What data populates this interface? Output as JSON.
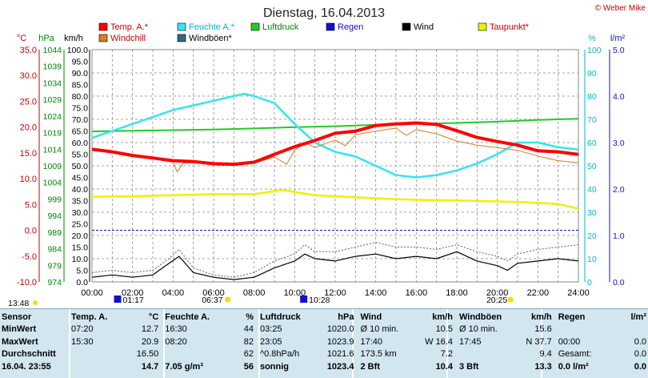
{
  "title": "Dienstag, 16.04.2013",
  "credit": "© Weber Mike",
  "colors": {
    "temp": "#ff0000",
    "humidity": "#33e6ee",
    "pressure": "#22cc22",
    "rain": "#1111cc",
    "wind": "#000000",
    "dewpoint": "#f0f000",
    "windchill": "#e07820",
    "gust": "#336688",
    "grid": "#888888"
  },
  "legend": [
    {
      "key": "temp",
      "label": "Temp. A.*"
    },
    {
      "key": "humidity",
      "label": "Feuchte A.*"
    },
    {
      "key": "pressure",
      "label": "Luftdruck"
    },
    {
      "key": "rain",
      "label": "Regen"
    },
    {
      "key": "wind",
      "label": "Wind"
    },
    {
      "key": "dewpoint",
      "label": "Taupunkt*"
    },
    {
      "key": "windchill",
      "label": "Windchill"
    },
    {
      "key": "gust",
      "label": "Windböen*"
    }
  ],
  "markers": {
    "sunrise": "06:37",
    "sunset": "20:25",
    "daylength": "13:48",
    "min_temp_time": "01:17",
    "max_gust_time": "10:28"
  },
  "chart_data": {
    "type": "line",
    "x_range": [
      "00:00",
      "24:00"
    ],
    "x_ticks": [
      "00:00",
      "02:00",
      "04:00",
      "06:00",
      "08:00",
      "10:00",
      "12:00",
      "14:00",
      "16:00",
      "18:00",
      "20:00",
      "22:00",
      "24:00"
    ],
    "axes": {
      "temp": {
        "unit": "°C",
        "range": [
          -10,
          35
        ],
        "ticks": [
          "35.0",
          "30.0",
          "25.0",
          "20.0",
          "15.0",
          "10.0",
          "5.0",
          "0.0",
          "-5.0",
          "-10.0"
        ]
      },
      "pressure": {
        "unit": "hPa",
        "range": [
          974,
          1045
        ],
        "ticks": [
          "1044",
          "1039",
          "1034",
          "1029",
          "1024",
          "1019",
          "1014",
          "1009",
          "1004",
          "999",
          "994",
          "989",
          "984",
          "979",
          "974"
        ]
      },
      "wind": {
        "unit": "km/h",
        "range": [
          0,
          100
        ],
        "ticks": [
          "100.0",
          "95.0",
          "90.0",
          "85.0",
          "80.0",
          "75.0",
          "70.0",
          "65.0",
          "60.0",
          "55.0",
          "50.0",
          "45.0",
          "40.0",
          "35.0",
          "30.0",
          "25.0",
          "20.0",
          "15.0",
          "10.0",
          "5.0",
          "0.0"
        ]
      },
      "humidity": {
        "unit": "%",
        "range": [
          0,
          100
        ],
        "ticks": [
          "100",
          "90",
          "80",
          "70",
          "60",
          "50",
          "40",
          "30",
          "20",
          "10",
          "0"
        ]
      },
      "rain": {
        "unit": "l/m²",
        "range": [
          0,
          5
        ],
        "ticks": [
          "5.0",
          "4.0",
          "3.0",
          "2.0",
          "1.0",
          "0.0"
        ]
      }
    },
    "series": [
      {
        "key": "temp",
        "name": "Temp. A.*",
        "axis": "temp",
        "x": [
          0,
          1,
          2,
          3,
          4,
          5,
          6,
          7,
          8,
          9,
          10,
          11,
          12,
          13,
          14,
          15,
          16,
          17,
          18,
          19,
          20,
          21,
          22,
          23,
          24
        ],
        "y": [
          15.7,
          15.2,
          14.5,
          14.0,
          13.5,
          13.3,
          12.9,
          12.8,
          13.2,
          14.7,
          16.2,
          17.4,
          18.8,
          19.2,
          20.3,
          20.6,
          20.8,
          20.5,
          19.3,
          18.0,
          17.2,
          16.5,
          15.4,
          15.2,
          14.7
        ]
      },
      {
        "key": "windchill",
        "name": "Windchill",
        "axis": "temp",
        "x": [
          0,
          1,
          2,
          3,
          4,
          4.2,
          4.5,
          5,
          6,
          7,
          8,
          9,
          9.6,
          10,
          10.5,
          11,
          12,
          12.5,
          13,
          14,
          15,
          15.5,
          16,
          17,
          18,
          19,
          20,
          21,
          22,
          23,
          24
        ],
        "y": [
          15.6,
          15.1,
          14.3,
          13.9,
          13.2,
          11.3,
          13.0,
          13.1,
          12.8,
          12.6,
          13.0,
          14.2,
          12.8,
          15.5,
          17.0,
          16.0,
          17.5,
          16.4,
          18.5,
          19.2,
          19.8,
          18.4,
          19.5,
          18.7,
          17.3,
          16.5,
          16.0,
          15.5,
          14.4,
          13.5,
          13.1
        ]
      },
      {
        "key": "dewpoint",
        "name": "Taupunkt*",
        "axis": "temp",
        "x": [
          0,
          2,
          4,
          6,
          8,
          9,
          9.5,
          10,
          11,
          12,
          14,
          16,
          18,
          20,
          21,
          22,
          23,
          24
        ],
        "y": [
          6.5,
          6.6,
          6.8,
          7.0,
          7.0,
          7.6,
          7.8,
          7.4,
          6.8,
          6.6,
          6.2,
          5.9,
          5.8,
          5.6,
          5.5,
          5.3,
          5.1,
          4.2
        ]
      },
      {
        "key": "humidity",
        "name": "Feuchte A.*",
        "axis": "humidity",
        "x": [
          0,
          1,
          2,
          3,
          4,
          5,
          6,
          7,
          7.5,
          8,
          9,
          10,
          11,
          12,
          13,
          14,
          15,
          16,
          17,
          18,
          19,
          20,
          21,
          22,
          23,
          24
        ],
        "y": [
          62,
          65,
          68,
          71,
          74,
          76,
          78,
          80,
          81,
          80,
          77,
          68,
          60,
          56,
          54,
          50,
          46,
          45,
          46,
          48,
          51,
          55,
          60,
          60,
          58,
          57
        ]
      },
      {
        "key": "pressure",
        "name": "Luftdruck",
        "axis": "pressure",
        "x": [
          0,
          2,
          4,
          6,
          8,
          10,
          12,
          14,
          16,
          18,
          20,
          22,
          24
        ],
        "y": [
          1020.0,
          1020.2,
          1020.4,
          1020.6,
          1020.9,
          1021.3,
          1021.6,
          1022.0,
          1022.3,
          1022.6,
          1023.0,
          1023.5,
          1023.9
        ]
      },
      {
        "key": "wind",
        "name": "Wind",
        "axis": "wind",
        "x": [
          0,
          1,
          2,
          3,
          3.8,
          4.3,
          5,
          6,
          7,
          8,
          9,
          10,
          10.5,
          11,
          12,
          13,
          14,
          15,
          16,
          17,
          18,
          19,
          20,
          20.5,
          21,
          22,
          23,
          24
        ],
        "y": [
          2,
          3,
          2,
          3,
          8,
          11,
          4,
          2,
          1,
          2,
          6,
          9,
          12,
          10,
          9,
          11,
          12,
          10,
          11,
          10,
          13,
          9,
          7,
          5,
          8,
          9,
          10,
          9
        ]
      },
      {
        "key": "gust",
        "name": "Windböen*",
        "axis": "wind",
        "x": [
          0,
          1,
          2,
          3,
          3.8,
          4.3,
          5,
          6,
          7,
          8,
          9,
          10,
          10.5,
          11,
          12,
          13,
          14,
          15,
          16,
          17,
          18,
          19,
          20,
          20.5,
          21,
          22,
          23,
          24
        ],
        "y": [
          4,
          5,
          4,
          5,
          10,
          14,
          6,
          3,
          2,
          4,
          9,
          12,
          16,
          13,
          13,
          15,
          17,
          15,
          15,
          14,
          16,
          13,
          11,
          9,
          12,
          14,
          15,
          16
        ]
      },
      {
        "key": "rain",
        "name": "Regen",
        "axis": "rain",
        "x": [
          0,
          24
        ],
        "y": [
          0,
          0
        ]
      }
    ],
    "reference_lines": [
      {
        "axis": "temp",
        "value": 0.0
      }
    ],
    "grid": true
  },
  "stats": {
    "rows": [
      {
        "c": [
          "Sensor",
          "Temp. A.",
          "°C",
          "Feuchte A.",
          "%",
          "Luftdruck",
          "hPa",
          "Wind",
          "km/h",
          "Windböen",
          "km/h",
          "Regen",
          "l/m²"
        ],
        "bold": true
      },
      {
        "c": [
          "MinWert",
          "07:20",
          "12.7",
          "16:30",
          "44",
          "03:25",
          "1020.0",
          "Ø 10 min.",
          "10.5",
          "Ø 10 min.",
          "15.6",
          "",
          ""
        ],
        "bold": false
      },
      {
        "c": [
          "MaxWert",
          "15:30",
          "20.9",
          "08:20",
          "82",
          "23:05",
          "1023.9",
          "17:40",
          "W 16.4",
          "17:45",
          "N 37.7",
          "00:00",
          "0.0"
        ],
        "bold": false
      },
      {
        "c": [
          "Durchschnitt",
          "",
          "16.50",
          "",
          "62",
          "^0.8hPa/h",
          "1021.6",
          "173.5 km",
          "7.2",
          "",
          "9.4",
          "Gesamt:",
          "0.0"
        ],
        "bold": false
      },
      {
        "c": [
          "16.04. 23:55",
          "",
          "14.7",
          "7.05 g/m³",
          "56",
          "sonnig",
          "1023.4",
          "2 Bft",
          "10.4",
          "3 Bft",
          "13.3",
          "0.0 l/m²",
          "0.0"
        ],
        "bold": false
      }
    ]
  }
}
